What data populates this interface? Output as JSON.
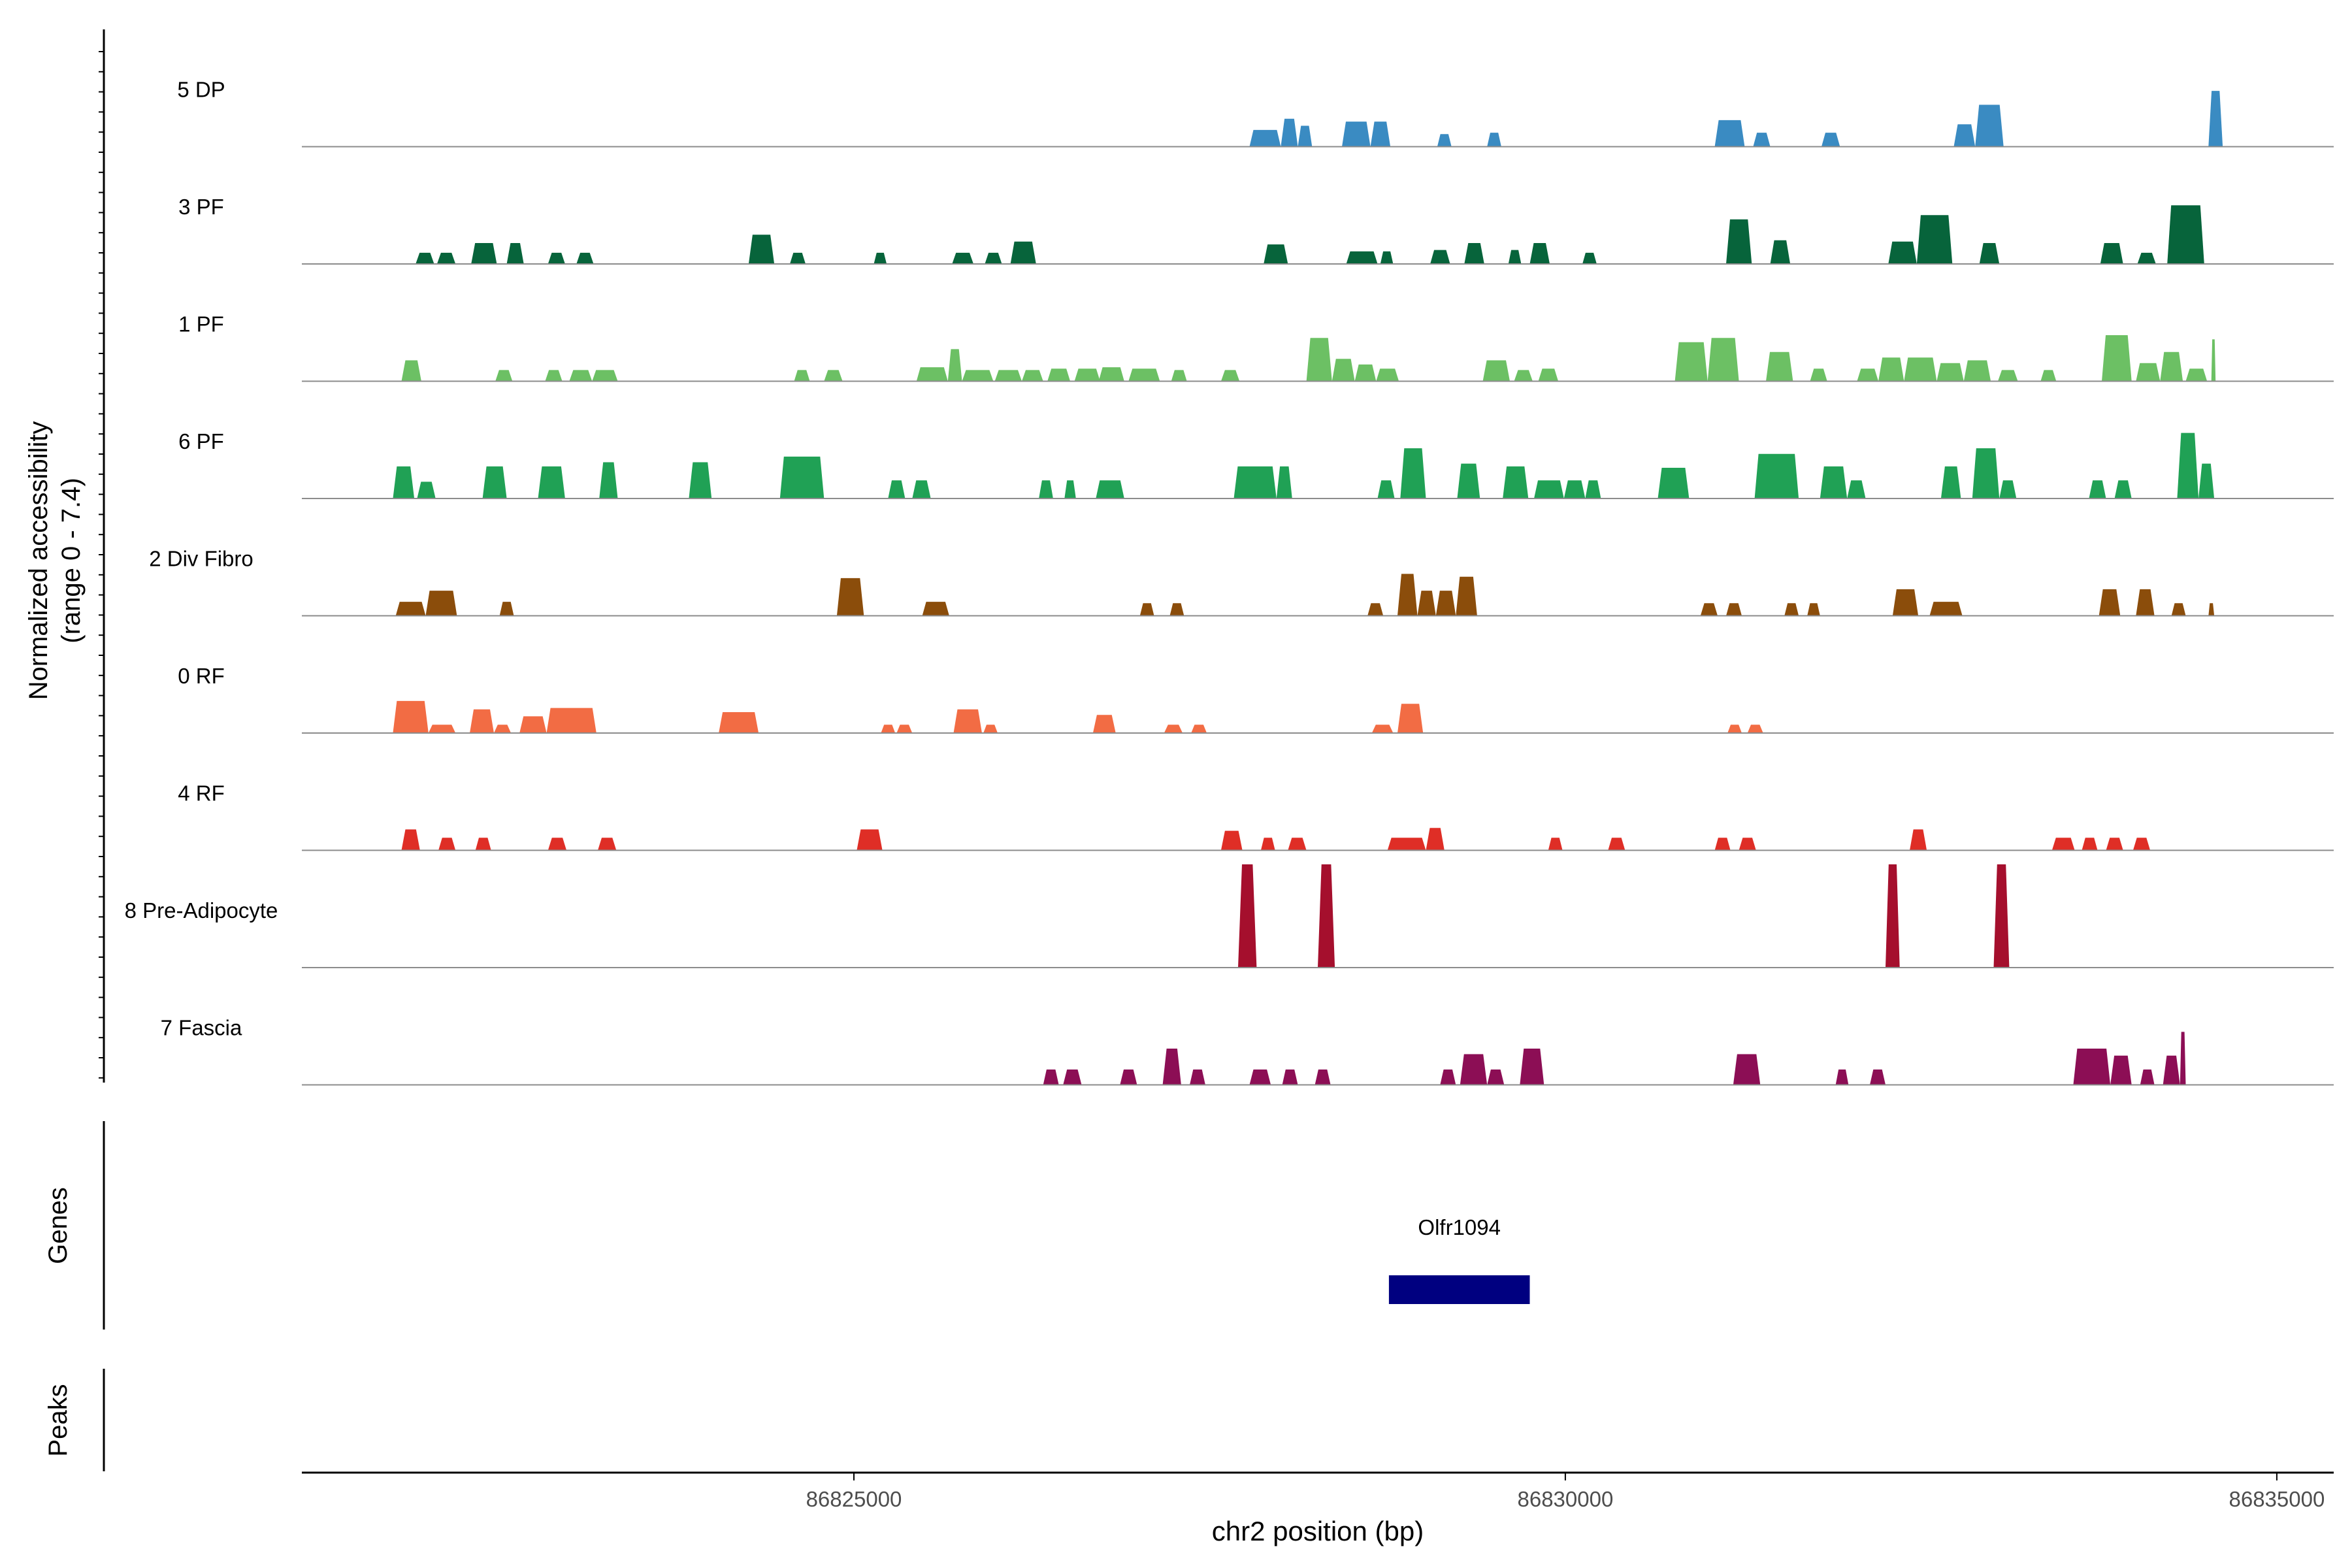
{
  "chart_data": {
    "type": "area",
    "title": "",
    "ylabel": [
      "Normalized accessibility",
      "(range 0 - 7.4)"
    ],
    "ylim": [
      0,
      7.4
    ],
    "xlabel": "chr2 position (bp)",
    "xlim": [
      86821120,
      86835400
    ],
    "xticks": [
      {
        "value": 86825000,
        "label": "86825000"
      },
      {
        "value": 86830000,
        "label": "86830000"
      },
      {
        "value": 86835000,
        "label": "86835000"
      }
    ],
    "series": [
      {
        "name": "5 DP",
        "color": "#3a8bc2",
        "peaks": [
          [
            86827780,
            86828000,
            1.2
          ],
          [
            86828000,
            86828120,
            2.0
          ],
          [
            86828120,
            86828220,
            1.5
          ],
          [
            86828430,
            86828630,
            1.8
          ],
          [
            86828630,
            86828770,
            1.8
          ],
          [
            86829100,
            86829200,
            0.9
          ],
          [
            86829450,
            86829550,
            1.0
          ],
          [
            86831050,
            86831260,
            1.9
          ],
          [
            86831320,
            86831440,
            1.0
          ],
          [
            86831800,
            86831930,
            1.0
          ],
          [
            86832730,
            86832880,
            1.6
          ],
          [
            86832880,
            86833080,
            3.0
          ],
          [
            86834520,
            86834620,
            4.0
          ]
        ]
      },
      {
        "name": "3 PF",
        "color": "#07643b",
        "peaks": [
          [
            86821920,
            86822050,
            0.8
          ],
          [
            86822070,
            86822200,
            0.8
          ],
          [
            86822310,
            86822490,
            1.5
          ],
          [
            86822560,
            86822680,
            1.5
          ],
          [
            86822850,
            86822970,
            0.8
          ],
          [
            86823050,
            86823170,
            0.8
          ],
          [
            86824260,
            86824440,
            2.1
          ],
          [
            86824550,
            86824660,
            0.8
          ],
          [
            86825140,
            86825230,
            0.8
          ],
          [
            86825690,
            86825840,
            0.8
          ],
          [
            86825920,
            86826040,
            0.8
          ],
          [
            86826100,
            86826280,
            1.6
          ],
          [
            86827880,
            86828050,
            1.4
          ],
          [
            86828460,
            86828680,
            0.9
          ],
          [
            86828700,
            86828790,
            0.9
          ],
          [
            86829050,
            86829190,
            1.0
          ],
          [
            86829290,
            86829430,
            1.5
          ],
          [
            86829600,
            86829690,
            1.0
          ],
          [
            86829750,
            86829890,
            1.5
          ],
          [
            86830120,
            86830220,
            0.8
          ],
          [
            86831130,
            86831310,
            3.2
          ],
          [
            86831440,
            86831580,
            1.7
          ],
          [
            86832270,
            86832470,
            1.6
          ],
          [
            86832470,
            86832720,
            3.5
          ],
          [
            86832910,
            86833050,
            1.5
          ],
          [
            86833760,
            86833920,
            1.5
          ],
          [
            86834020,
            86834150,
            0.8
          ],
          [
            86834230,
            86834490,
            4.2
          ]
        ]
      },
      {
        "name": "1 PF",
        "color": "#6cc064",
        "peaks": [
          [
            86821820,
            86821960,
            1.5
          ],
          [
            86822480,
            86822600,
            0.8
          ],
          [
            86822830,
            86822950,
            0.8
          ],
          [
            86823000,
            86823160,
            0.8
          ],
          [
            86823160,
            86823340,
            0.8
          ],
          [
            86824580,
            86824690,
            0.8
          ],
          [
            86824790,
            86824920,
            0.8
          ],
          [
            86825440,
            86825660,
            1.0
          ],
          [
            86825660,
            86825760,
            2.3
          ],
          [
            86825760,
            86825980,
            0.8
          ],
          [
            86825990,
            86826180,
            0.8
          ],
          [
            86826180,
            86826330,
            0.8
          ],
          [
            86826360,
            86826520,
            0.9
          ],
          [
            86826550,
            86826730,
            0.9
          ],
          [
            86826720,
            86826900,
            1.0
          ],
          [
            86826930,
            86827150,
            0.9
          ],
          [
            86827230,
            86827340,
            0.8
          ],
          [
            86827580,
            86827710,
            0.8
          ],
          [
            86828180,
            86828360,
            3.1
          ],
          [
            86828360,
            86828520,
            1.6
          ],
          [
            86828520,
            86828670,
            1.2
          ],
          [
            86828670,
            86828830,
            0.9
          ],
          [
            86829420,
            86829610,
            1.5
          ],
          [
            86829640,
            86829770,
            0.8
          ],
          [
            86829810,
            86829950,
            0.9
          ],
          [
            86830770,
            86831000,
            2.8
          ],
          [
            86831000,
            86831220,
            3.1
          ],
          [
            86831410,
            86831600,
            2.1
          ],
          [
            86831720,
            86831840,
            0.9
          ],
          [
            86832050,
            86832200,
            0.9
          ],
          [
            86832200,
            86832380,
            1.7
          ],
          [
            86832380,
            86832610,
            1.7
          ],
          [
            86832610,
            86832800,
            1.3
          ],
          [
            86832800,
            86832990,
            1.5
          ],
          [
            86833040,
            86833180,
            0.8
          ],
          [
            86833340,
            86833450,
            0.8
          ],
          [
            86833770,
            86833980,
            3.3
          ],
          [
            86834010,
            86834180,
            1.3
          ],
          [
            86834180,
            86834340,
            2.1
          ],
          [
            86834360,
            86834510,
            0.9
          ],
          [
            86834540,
            86834570,
            3.0
          ]
        ]
      },
      {
        "name": "6 PF",
        "color": "#20a155",
        "peaks": [
          [
            86821760,
            86821910,
            2.3
          ],
          [
            86821930,
            86822060,
            1.2
          ],
          [
            86822390,
            86822560,
            2.3
          ],
          [
            86822780,
            86822970,
            2.3
          ],
          [
            86823210,
            86823340,
            2.6
          ],
          [
            86823840,
            86824000,
            2.6
          ],
          [
            86824480,
            86824790,
            3.0
          ],
          [
            86825240,
            86825360,
            1.3
          ],
          [
            86825410,
            86825540,
            1.3
          ],
          [
            86826300,
            86826400,
            1.3
          ],
          [
            86826480,
            86826560,
            1.3
          ],
          [
            86826700,
            86826900,
            1.3
          ],
          [
            86827670,
            86827970,
            2.3
          ],
          [
            86827970,
            86828080,
            2.3
          ],
          [
            86828680,
            86828800,
            1.3
          ],
          [
            86828840,
            86829020,
            3.6
          ],
          [
            86829240,
            86829400,
            2.5
          ],
          [
            86829560,
            86829740,
            2.3
          ],
          [
            86829780,
            86829990,
            1.3
          ],
          [
            86829990,
            86830140,
            1.3
          ],
          [
            86830140,
            86830250,
            1.3
          ],
          [
            86830650,
            86830870,
            2.2
          ],
          [
            86831330,
            86831640,
            3.2
          ],
          [
            86831790,
            86831980,
            2.3
          ],
          [
            86831980,
            86832110,
            1.3
          ],
          [
            86832640,
            86832780,
            2.3
          ],
          [
            86832860,
            86833050,
            3.6
          ],
          [
            86833050,
            86833170,
            1.3
          ],
          [
            86833680,
            86833800,
            1.3
          ],
          [
            86833860,
            86833980,
            1.3
          ],
          [
            86834300,
            86834450,
            4.7
          ],
          [
            86834450,
            86834560,
            2.5
          ]
        ]
      },
      {
        "name": "2 Div Fibro",
        "color": "#8b4d0b",
        "peaks": [
          [
            86821780,
            86821990,
            1.0
          ],
          [
            86821990,
            86822210,
            1.8
          ],
          [
            86822510,
            86822610,
            1.0
          ],
          [
            86824880,
            86825070,
            2.7
          ],
          [
            86825480,
            86825670,
            1.0
          ],
          [
            86827010,
            86827110,
            0.9
          ],
          [
            86827220,
            86827320,
            0.9
          ],
          [
            86828610,
            86828720,
            0.9
          ],
          [
            86828820,
            86828960,
            3.0
          ],
          [
            86828960,
            86829090,
            1.8
          ],
          [
            86829090,
            86829230,
            1.8
          ],
          [
            86829230,
            86829380,
            2.8
          ],
          [
            86830950,
            86831070,
            0.9
          ],
          [
            86831130,
            86831240,
            0.9
          ],
          [
            86831540,
            86831640,
            0.9
          ],
          [
            86831700,
            86831790,
            0.9
          ],
          [
            86832300,
            86832480,
            1.9
          ],
          [
            86832560,
            86832790,
            1.0
          ],
          [
            86833750,
            86833900,
            1.9
          ],
          [
            86834010,
            86834140,
            1.9
          ],
          [
            86834260,
            86834360,
            0.9
          ],
          [
            86834520,
            86834560,
            0.9
          ]
        ]
      },
      {
        "name": "0 RF",
        "color": "#f26c44",
        "peaks": [
          [
            86821760,
            86822010,
            2.3
          ],
          [
            86822010,
            86822200,
            0.6
          ],
          [
            86822300,
            86822470,
            1.7
          ],
          [
            86822470,
            86822590,
            0.6
          ],
          [
            86822650,
            86822840,
            1.2
          ],
          [
            86822840,
            86823190,
            1.8
          ],
          [
            86824050,
            86824330,
            1.5
          ],
          [
            86825190,
            86825290,
            0.6
          ],
          [
            86825300,
            86825410,
            0.6
          ],
          [
            86825700,
            86825900,
            1.7
          ],
          [
            86825910,
            86826010,
            0.6
          ],
          [
            86826680,
            86826840,
            1.3
          ],
          [
            86827180,
            86827310,
            0.6
          ],
          [
            86827370,
            86827480,
            0.6
          ],
          [
            86828640,
            86828790,
            0.6
          ],
          [
            86828820,
            86829000,
            2.1
          ],
          [
            86831140,
            86831240,
            0.6
          ],
          [
            86831280,
            86831390,
            0.6
          ]
        ]
      },
      {
        "name": "4 RF",
        "color": "#df2e26",
        "peaks": [
          [
            86821820,
            86821950,
            1.5
          ],
          [
            86822080,
            86822200,
            0.9
          ],
          [
            86822340,
            86822450,
            0.9
          ],
          [
            86822850,
            86822980,
            0.9
          ],
          [
            86823200,
            86823330,
            0.9
          ],
          [
            86825020,
            86825200,
            1.5
          ],
          [
            86827580,
            86827730,
            1.4
          ],
          [
            86827860,
            86827960,
            0.9
          ],
          [
            86828050,
            86828180,
            0.9
          ],
          [
            86828750,
            86829020,
            0.9
          ],
          [
            86829020,
            86829150,
            1.6
          ],
          [
            86829880,
            86829980,
            0.9
          ],
          [
            86830300,
            86830420,
            0.9
          ],
          [
            86831050,
            86831160,
            0.9
          ],
          [
            86831220,
            86831340,
            0.9
          ],
          [
            86832420,
            86832540,
            1.5
          ],
          [
            86833420,
            86833580,
            0.9
          ],
          [
            86833630,
            86833740,
            0.9
          ],
          [
            86833800,
            86833920,
            0.9
          ],
          [
            86833990,
            86834110,
            0.9
          ]
        ]
      },
      {
        "name": "8 Pre-Adipocyte",
        "color": "#a50f2d",
        "peaks": [
          [
            86827700,
            86827830,
            7.4
          ],
          [
            86828260,
            86828380,
            7.4
          ],
          [
            86832250,
            86832350,
            7.4
          ],
          [
            86833010,
            86833120,
            7.4
          ]
        ]
      },
      {
        "name": "7 Fascia",
        "color": "#8c0e55",
        "peaks": [
          [
            86826330,
            86826440,
            1.1
          ],
          [
            86826470,
            86826600,
            1.1
          ],
          [
            86826870,
            86826990,
            1.1
          ],
          [
            86827170,
            86827300,
            2.6
          ],
          [
            86827360,
            86827470,
            1.1
          ],
          [
            86827780,
            86827930,
            1.1
          ],
          [
            86828010,
            86828120,
            1.1
          ],
          [
            86828240,
            86828350,
            1.1
          ],
          [
            86829120,
            86829230,
            1.1
          ],
          [
            86829260,
            86829450,
            2.2
          ],
          [
            86829450,
            86829570,
            1.1
          ],
          [
            86829680,
            86829850,
            2.6
          ],
          [
            86831180,
            86831370,
            2.2
          ],
          [
            86831900,
            86831990,
            1.1
          ],
          [
            86832140,
            86832250,
            1.1
          ],
          [
            86833570,
            86833830,
            2.6
          ],
          [
            86833830,
            86833980,
            2.1
          ],
          [
            86834040,
            86834140,
            1.1
          ],
          [
            86834200,
            86834320,
            2.1
          ],
          [
            86834320,
            86834360,
            3.8
          ]
        ]
      }
    ],
    "genes_panel": {
      "label": "Genes",
      "genes": [
        {
          "name": "Olfr1094",
          "start": 86828760,
          "end": 86829750,
          "color": "#000080"
        }
      ]
    },
    "peaks_panel": {
      "label": "Peaks",
      "peaks": []
    }
  }
}
